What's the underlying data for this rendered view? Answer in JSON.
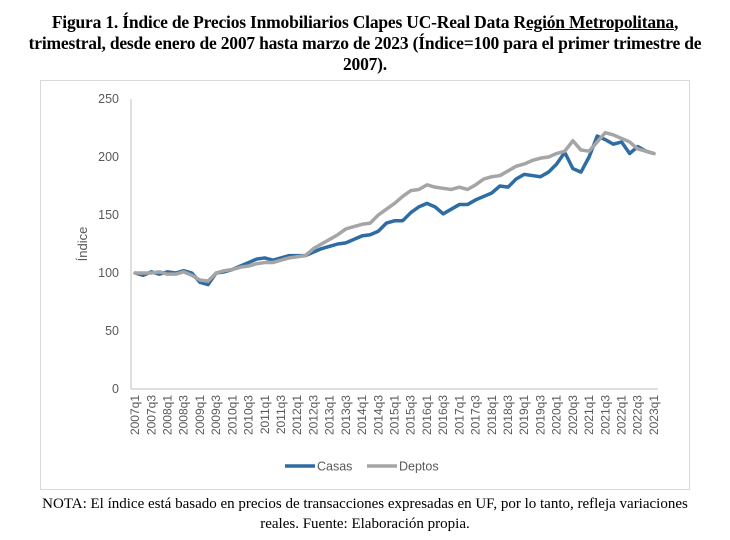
{
  "title": {
    "part1": "Figura 1. Índice de Precios Inmobiliarios Clapes UC-Real Data R",
    "underlined": "egión Metropolitana",
    "part2": ",",
    "line2": "trimestral, desde enero de 2007 hasta marzo de 2023 (Índice=100 para el primer trimestre de",
    "line3": "2007)."
  },
  "note": {
    "line1": "NOTA: El índice está basado en precios de transacciones expresadas en UF, por lo tanto, refleja variaciones",
    "line2": "reales. Fuente: Elaboración propia."
  },
  "chart_data": {
    "type": "line",
    "title": "Índice de Precios Inmobiliarios Clapes UC-Real Data Región Metropolitana",
    "xlabel": "",
    "ylabel": "Índice",
    "ylim": [
      0,
      250
    ],
    "yticks": [
      0,
      50,
      100,
      150,
      200,
      250
    ],
    "grid": false,
    "legend": "bottom",
    "x": [
      "2007q1",
      "2007q2",
      "2007q3",
      "2007q4",
      "2008q1",
      "2008q2",
      "2008q3",
      "2008q4",
      "2009q1",
      "2009q2",
      "2009q3",
      "2009q4",
      "2010q1",
      "2010q2",
      "2010q3",
      "2010q4",
      "2011q1",
      "2011q2",
      "2011q3",
      "2011q4",
      "2012q1",
      "2012q2",
      "2012q3",
      "2012q4",
      "2013q1",
      "2013q2",
      "2013q3",
      "2013q4",
      "2014q1",
      "2014q2",
      "2014q3",
      "2014q4",
      "2015q1",
      "2015q2",
      "2015q3",
      "2015q4",
      "2016q1",
      "2016q2",
      "2016q3",
      "2016q4",
      "2017q1",
      "2017q2",
      "2017q3",
      "2017q4",
      "2018q1",
      "2018q2",
      "2018q3",
      "2018q4",
      "2019q1",
      "2019q2",
      "2019q3",
      "2019q4",
      "2020q1",
      "2020q2",
      "2020q3",
      "2020q4",
      "2021q1",
      "2021q2",
      "2021q3",
      "2021q4",
      "2022q1",
      "2022q2",
      "2022q3",
      "2022q4",
      "2023q1"
    ],
    "xtick_labels": [
      "2007q1",
      "2007q3",
      "2008q1",
      "2008q3",
      "2009q1",
      "2009q3",
      "2010q1",
      "2010q3",
      "2011q1",
      "2011q3",
      "2012q1",
      "2012q3",
      "2013q1",
      "2013q3",
      "2014q1",
      "2014q3",
      "2015q1",
      "2015q3",
      "2016q1",
      "2016q3",
      "2017q1",
      "2017q3",
      "2018q1",
      "2018q3",
      "2019q1",
      "2019q3",
      "2020q1",
      "2020q3",
      "2021q1",
      "2021q3",
      "2022q1",
      "2022q3",
      "2023q1"
    ],
    "series": [
      {
        "name": "Casas",
        "color": "#2e6ca4",
        "values": [
          100,
          98,
          101,
          99,
          101,
          100,
          102,
          100,
          92,
          90,
          100,
          101,
          103,
          106,
          109,
          112,
          113,
          111,
          113,
          115,
          115,
          115,
          118,
          121,
          123,
          125,
          126,
          129,
          132,
          133,
          136,
          143,
          145,
          145,
          152,
          157,
          160,
          157,
          151,
          155,
          159,
          159,
          163,
          166,
          169,
          175,
          174,
          181,
          185,
          184,
          183,
          187,
          194,
          204,
          190,
          187,
          200,
          218,
          215,
          211,
          213,
          203,
          209,
          205,
          203
        ]
      },
      {
        "name": "Deptos",
        "color": "#a5a5a5",
        "values": [
          100,
          100,
          100,
          101,
          99,
          99,
          101,
          98,
          94,
          93,
          100,
          102,
          103,
          105,
          106,
          108,
          109,
          109,
          111,
          113,
          114,
          115,
          121,
          125,
          129,
          133,
          138,
          140,
          142,
          143,
          150,
          155,
          160,
          166,
          171,
          172,
          176,
          174,
          173,
          172,
          174,
          172,
          176,
          181,
          183,
          184,
          188,
          192,
          194,
          197,
          199,
          200,
          203,
          205,
          214,
          206,
          205,
          213,
          221,
          219,
          216,
          213,
          207,
          205,
          203
        ]
      }
    ]
  }
}
